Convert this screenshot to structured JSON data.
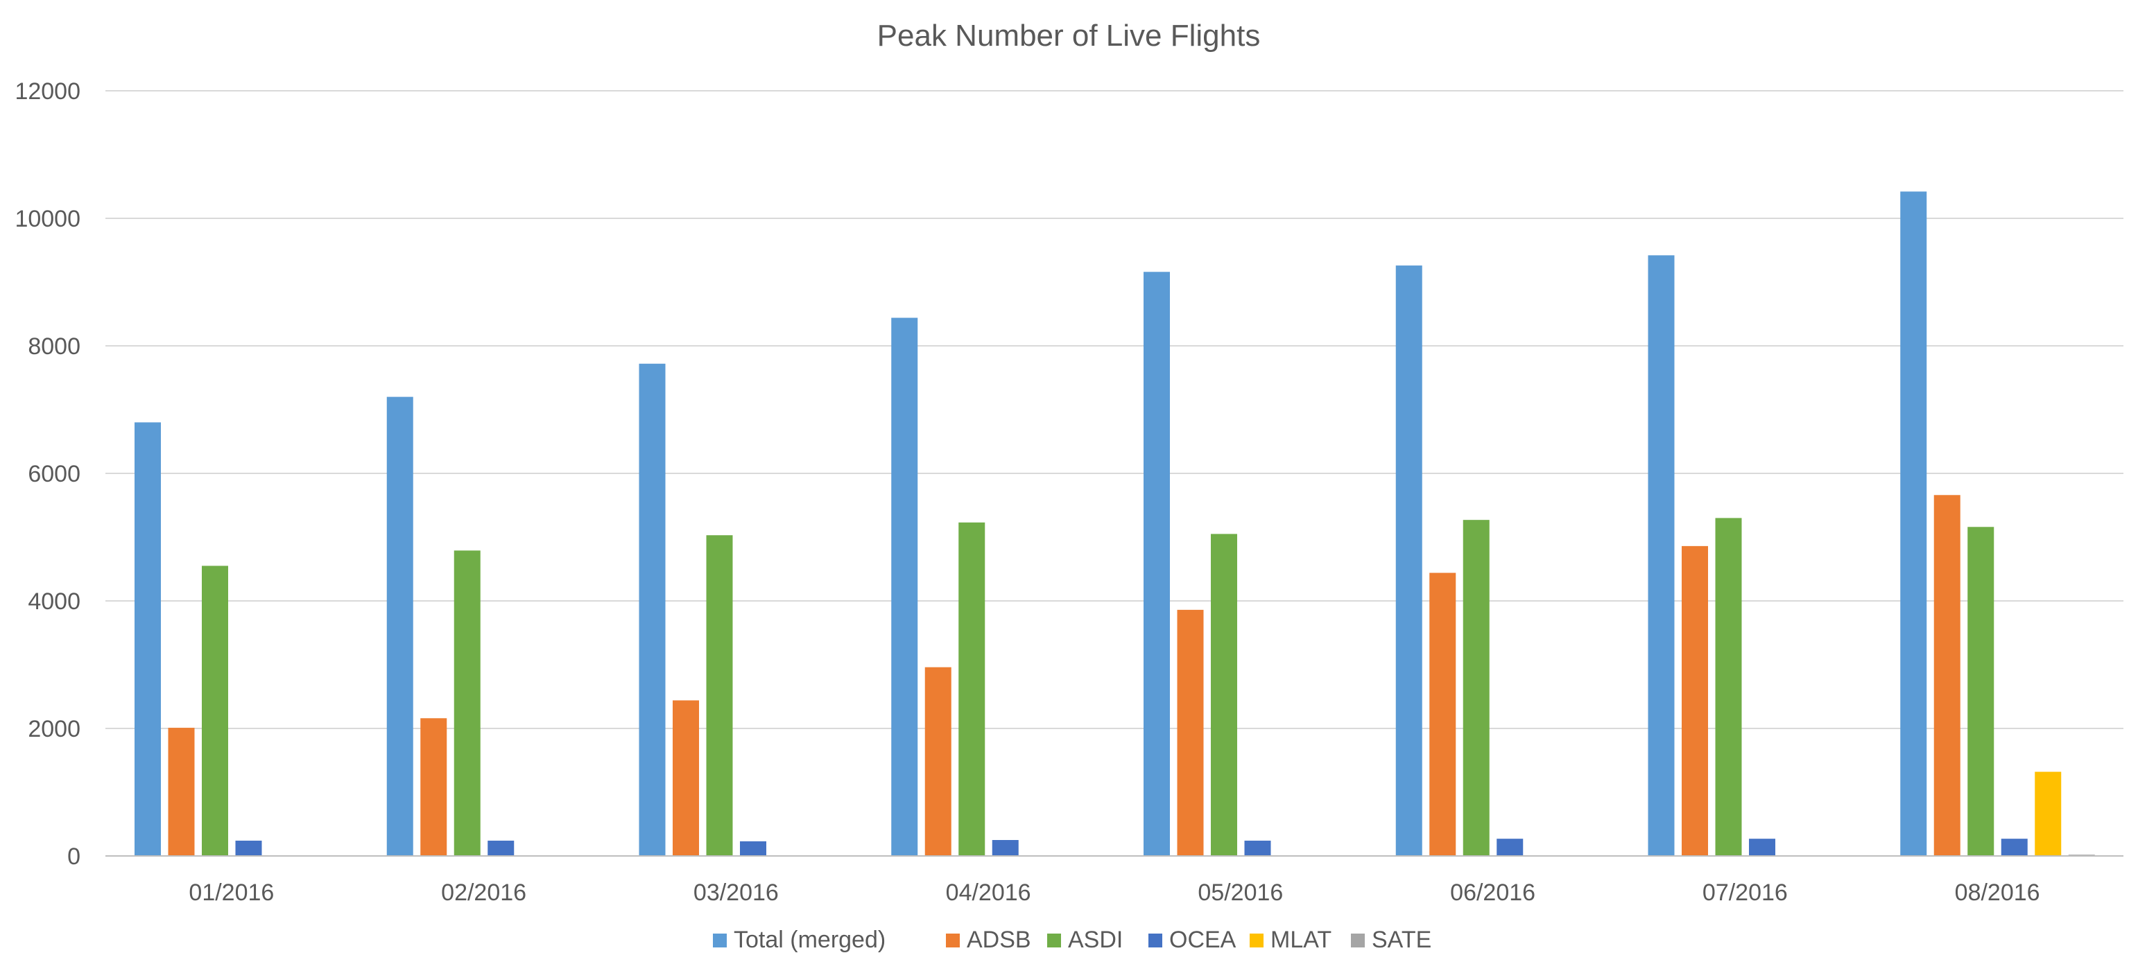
{
  "chart_data": {
    "type": "bar",
    "title": "Peak Number of Live Flights",
    "xlabel": "",
    "ylabel": "",
    "categories": [
      "01/2016",
      "02/2016",
      "03/2016",
      "04/2016",
      "05/2016",
      "06/2016",
      "07/2016",
      "08/2016"
    ],
    "ylim": [
      0,
      12000
    ],
    "yticks": [
      0,
      2000,
      4000,
      6000,
      8000,
      10000,
      12000
    ],
    "grid": true,
    "legend_position": "bottom",
    "series": [
      {
        "name": "Total (merged)",
        "color": "#5B9BD5",
        "values": [
          6800,
          7200,
          7720,
          8440,
          9160,
          9260,
          9420,
          10420
        ]
      },
      {
        "name": "ADSB",
        "color": "#ED7D31",
        "values": [
          2010,
          2160,
          2440,
          2960,
          3860,
          4440,
          4860,
          5660
        ]
      },
      {
        "name": "ASDI",
        "color": "#70AD47",
        "values": [
          4550,
          4790,
          5030,
          5230,
          5050,
          5270,
          5300,
          5160
        ]
      },
      {
        "name": "OCEA",
        "color": "#4472C4",
        "values": [
          240,
          240,
          230,
          250,
          240,
          270,
          270,
          270
        ]
      },
      {
        "name": "MLAT",
        "color": "#FFC000",
        "values": [
          0,
          0,
          0,
          0,
          0,
          0,
          0,
          1320
        ]
      },
      {
        "name": "SATE",
        "color": "#A5A5A5",
        "values": [
          0,
          0,
          0,
          0,
          0,
          0,
          0,
          20
        ]
      }
    ]
  }
}
